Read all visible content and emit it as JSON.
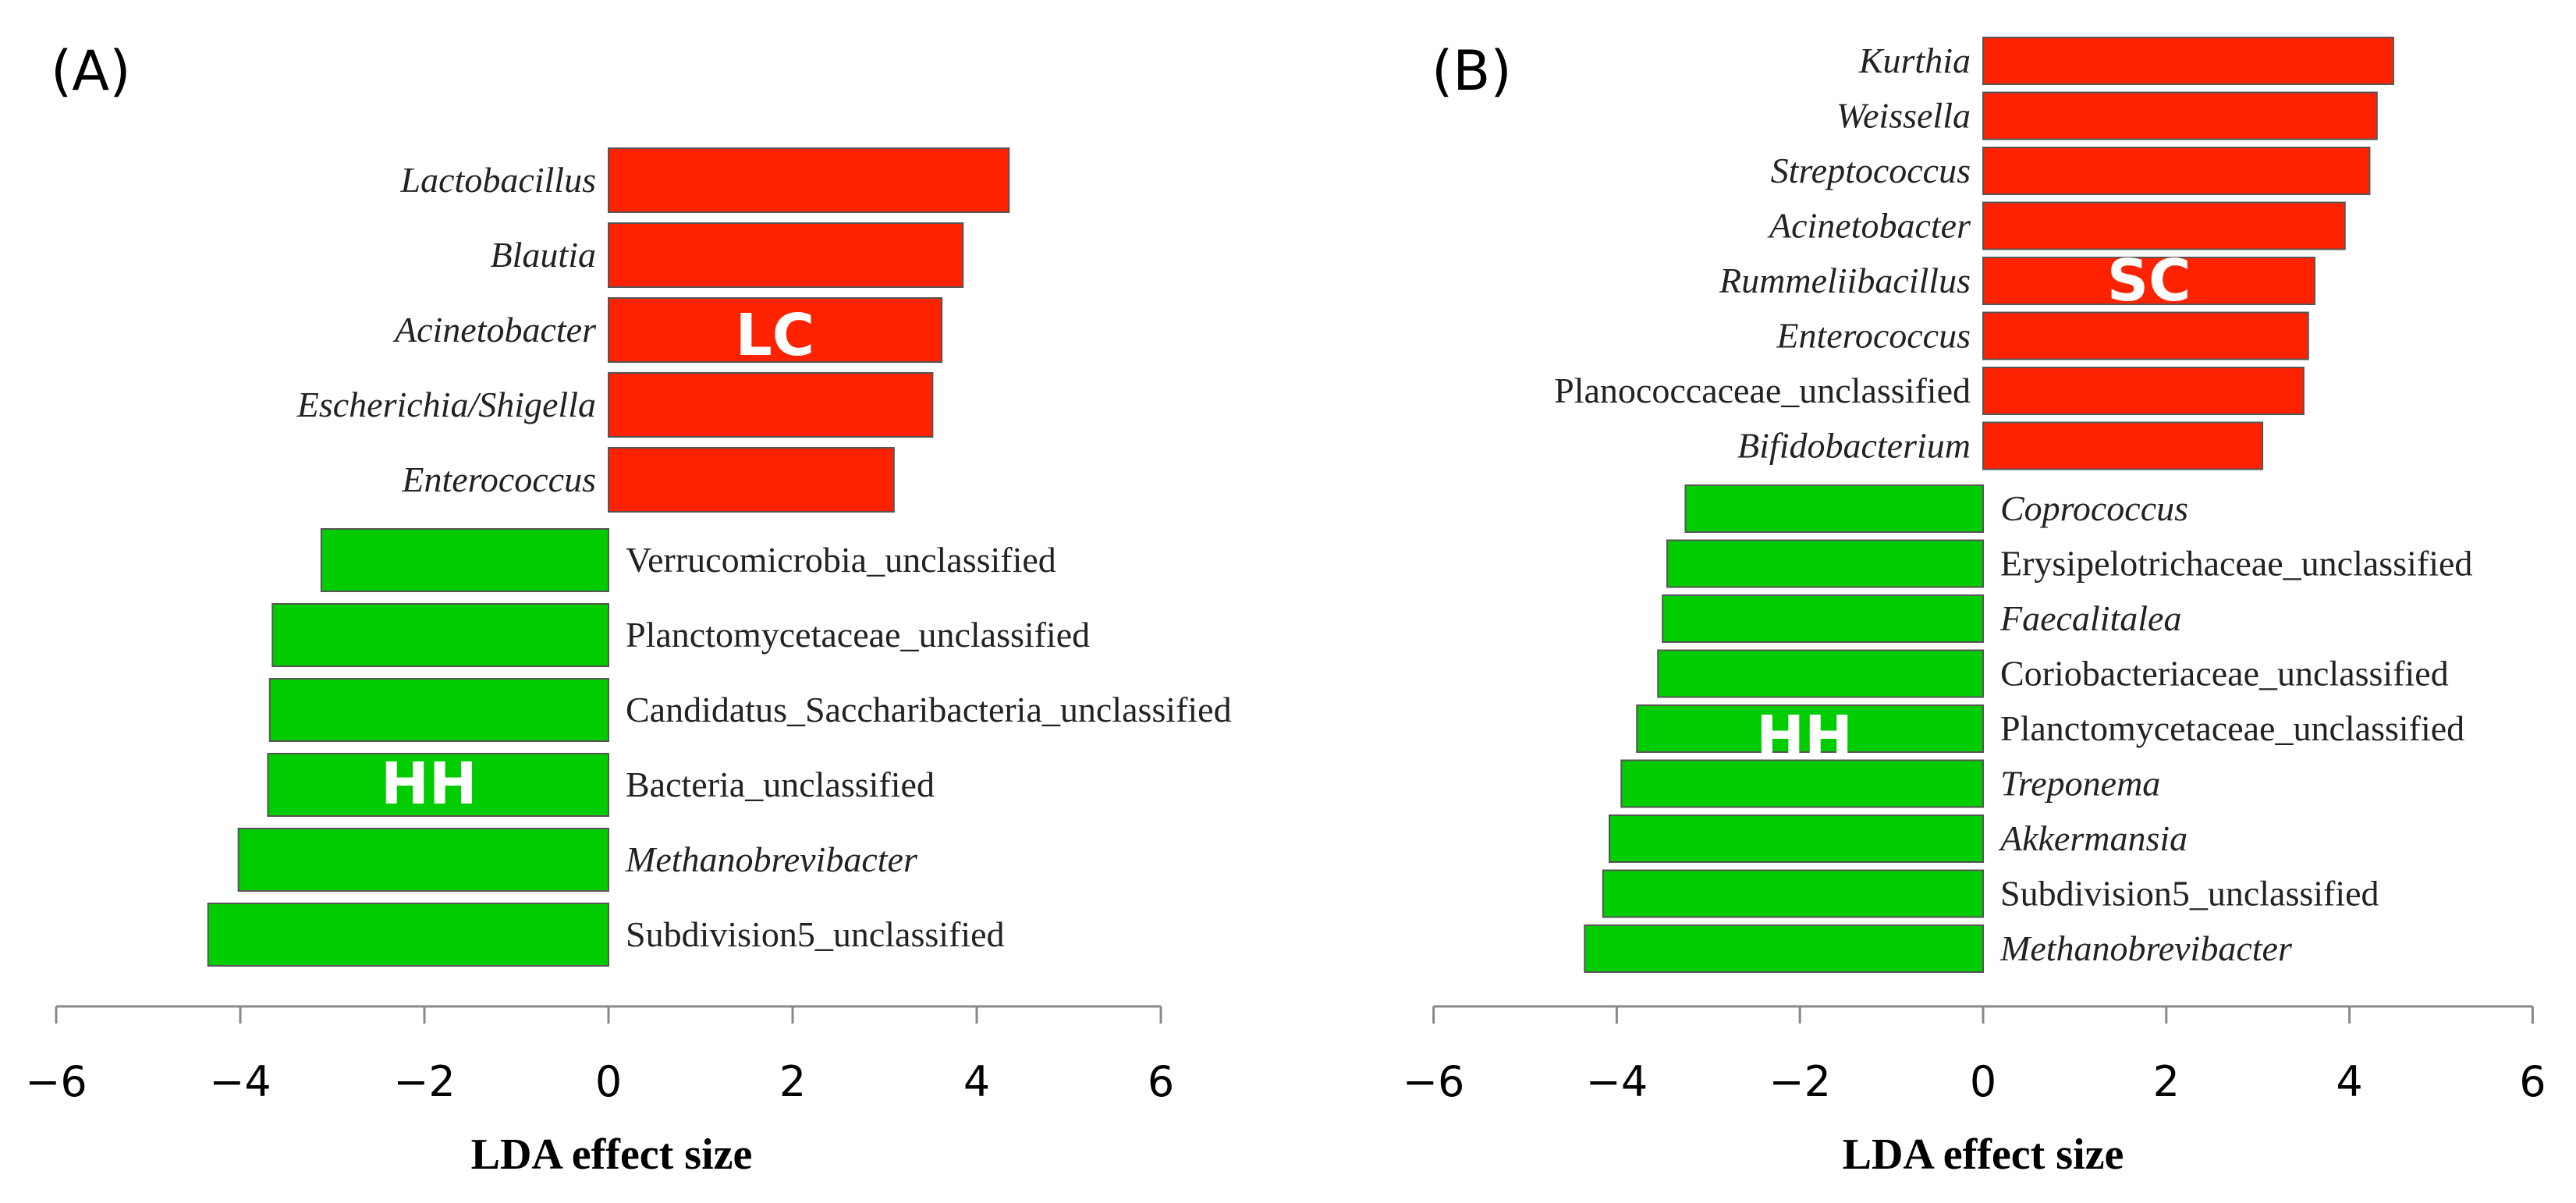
{
  "colors": {
    "positive": "#ff2200",
    "negative": "#00cc00"
  },
  "chart_data": [
    {
      "type": "bar",
      "orientation": "horizontal",
      "panel_label": "(A)",
      "xlabel": "LDA effect size",
      "xlim": [
        -6,
        6
      ],
      "xticks": [
        -6,
        -4,
        -2,
        0,
        2,
        4,
        6
      ],
      "tick_labels": [
        "−6",
        "−4",
        "−2",
        "0",
        "2",
        "4",
        "6"
      ],
      "group_labels": {
        "positive": "LC",
        "negative": "HH"
      },
      "bars": [
        {
          "label": "Lactobacillus",
          "value": 4.35,
          "italic": true
        },
        {
          "label": "Blautia",
          "value": 3.85,
          "italic": true
        },
        {
          "label": "Acinetobacter",
          "value": 3.62,
          "italic": true
        },
        {
          "label": "Escherichia/Shigella",
          "value": 3.52,
          "italic": true
        },
        {
          "label": "Enterococcus",
          "value": 3.1,
          "italic": true
        },
        {
          "label": "Verrucomicrobia_unclassified",
          "value": -3.12,
          "italic": false
        },
        {
          "label": "Planctomycetaceae_unclassified",
          "value": -3.65,
          "italic": false
        },
        {
          "label": "Candidatus_Saccharibacteria_unclassified",
          "value": -3.68,
          "italic": false
        },
        {
          "label": "Bacteria_unclassified",
          "value": -3.7,
          "italic": false
        },
        {
          "label": "Methanobrevibacter",
          "value": -4.02,
          "italic": true
        },
        {
          "label": "Subdivision5_unclassified",
          "value": -4.35,
          "italic": false
        }
      ]
    },
    {
      "type": "bar",
      "orientation": "horizontal",
      "panel_label": "(B)",
      "xlabel": "LDA effect size",
      "xlim": [
        -6,
        6
      ],
      "xticks": [
        -6,
        -4,
        -2,
        0,
        2,
        4,
        6
      ],
      "tick_labels": [
        "−6",
        "−4",
        "−2",
        "0",
        "2",
        "4",
        "6"
      ],
      "group_labels": {
        "positive": "SC",
        "negative": "HH"
      },
      "bars": [
        {
          "label": "Kurthia",
          "value": 4.48,
          "italic": true
        },
        {
          "label": "Weissella",
          "value": 4.3,
          "italic": true
        },
        {
          "label": "Streptococcus",
          "value": 4.22,
          "italic": true
        },
        {
          "label": "Acinetobacter",
          "value": 3.95,
          "italic": true
        },
        {
          "label": "Rummeliibacillus",
          "value": 3.62,
          "italic": true
        },
        {
          "label": "Enterococcus",
          "value": 3.55,
          "italic": true
        },
        {
          "label": "Planococcaceae_unclassified",
          "value": 3.5,
          "italic": false
        },
        {
          "label": "Bifidobacterium",
          "value": 3.05,
          "italic": true
        },
        {
          "label": "Coprococcus",
          "value": -3.25,
          "italic": true
        },
        {
          "label": "Erysipelotrichaceae_unclassified",
          "value": -3.45,
          "italic": false
        },
        {
          "label": "Faecalitalea",
          "value": -3.5,
          "italic": true
        },
        {
          "label": "Coriobacteriaceae_unclassified",
          "value": -3.55,
          "italic": false
        },
        {
          "label": "Planctomycetaceae_unclassified",
          "value": -3.78,
          "italic": false
        },
        {
          "label": "Treponema",
          "value": -3.95,
          "italic": true
        },
        {
          "label": "Akkermansia",
          "value": -4.08,
          "italic": true
        },
        {
          "label": "Subdivision5_unclassified",
          "value": -4.15,
          "italic": false
        },
        {
          "label": "Methanobrevibacter",
          "value": -4.35,
          "italic": true
        }
      ]
    }
  ]
}
